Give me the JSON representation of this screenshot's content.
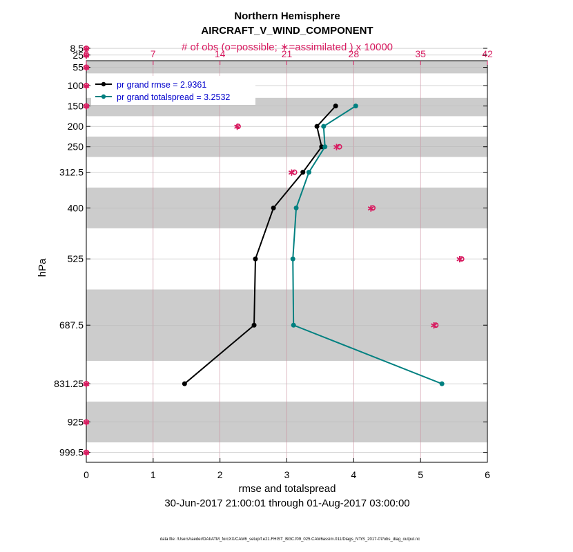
{
  "chart_data": {
    "type": "line",
    "title": "Northern Hemisphere",
    "subtitle": "AIRCRAFT_V_WIND_COMPONENT",
    "top_axis_label": "# of obs (o=possible; ∗=assimilated ) x 10000",
    "xlabel": "rmse and totalspread",
    "ylabel": "hPa",
    "date_range": "30-Jun-2017 21:00:01 through 01-Aug-2017 03:00:00",
    "footnote": "data file: /Users/raeder/DAI/ATM_forcXX/CAM6_setup/f.e21.FHIST_BGC.f09_025.CAM6assim.011/Diags_NTrS_2017-07/obs_diag_output.nc",
    "xlim": [
      0,
      6
    ],
    "x_ticks": [
      "0",
      "1",
      "2",
      "3",
      "4",
      "5",
      "6"
    ],
    "top_xlim": [
      0,
      42
    ],
    "top_x_ticks": [
      "0",
      "7",
      "14",
      "21",
      "28",
      "35",
      "42"
    ],
    "levels": [
      8.5,
      25,
      55,
      100,
      150,
      200,
      250,
      312.5,
      400,
      525,
      687.5,
      831.25,
      925,
      999.5
    ],
    "y_tick_labels": [
      "8.5",
      "25",
      "55",
      "100",
      "150",
      "200",
      "250",
      "312.5",
      "400",
      "525",
      "687.5",
      "831.25",
      "925",
      "999.5"
    ],
    "legend_position": "top-left",
    "shaded_bands_hpa": [
      [
        0,
        15
      ],
      [
        40,
        70
      ],
      [
        130,
        175
      ],
      [
        225,
        275
      ],
      [
        350,
        450
      ],
      [
        600,
        775
      ],
      [
        875,
        975
      ]
    ],
    "series": [
      {
        "name": "pr grand rmse = 2.9361",
        "color": "#000000",
        "levels": [
          150,
          200,
          250,
          312.5,
          400,
          525,
          687.5,
          831.25
        ],
        "values": [
          3.73,
          3.45,
          3.52,
          3.24,
          2.8,
          2.53,
          2.51,
          1.47
        ]
      },
      {
        "name": "pr grand totalspread = 3.2532",
        "color": "#008080",
        "levels": [
          150,
          200,
          250,
          312.5,
          400,
          525,
          687.5,
          831.25
        ],
        "values": [
          4.03,
          3.55,
          3.57,
          3.33,
          3.14,
          3.09,
          3.1,
          5.32
        ]
      }
    ],
    "obs_counts": {
      "color": "#d81b60",
      "levels": [
        8.5,
        25,
        55,
        100,
        150,
        200,
        250,
        312.5,
        400,
        525,
        687.5,
        831.25,
        925,
        999.5
      ],
      "possible": [
        0,
        0,
        0,
        0,
        0,
        15.9,
        26.5,
        21.8,
        30,
        39.3,
        36.6,
        0,
        0,
        0
      ],
      "assimilated": [
        0,
        0,
        0,
        0,
        0,
        15.8,
        26.2,
        21.5,
        29.8,
        39.1,
        36.4,
        0,
        0,
        0
      ]
    }
  }
}
